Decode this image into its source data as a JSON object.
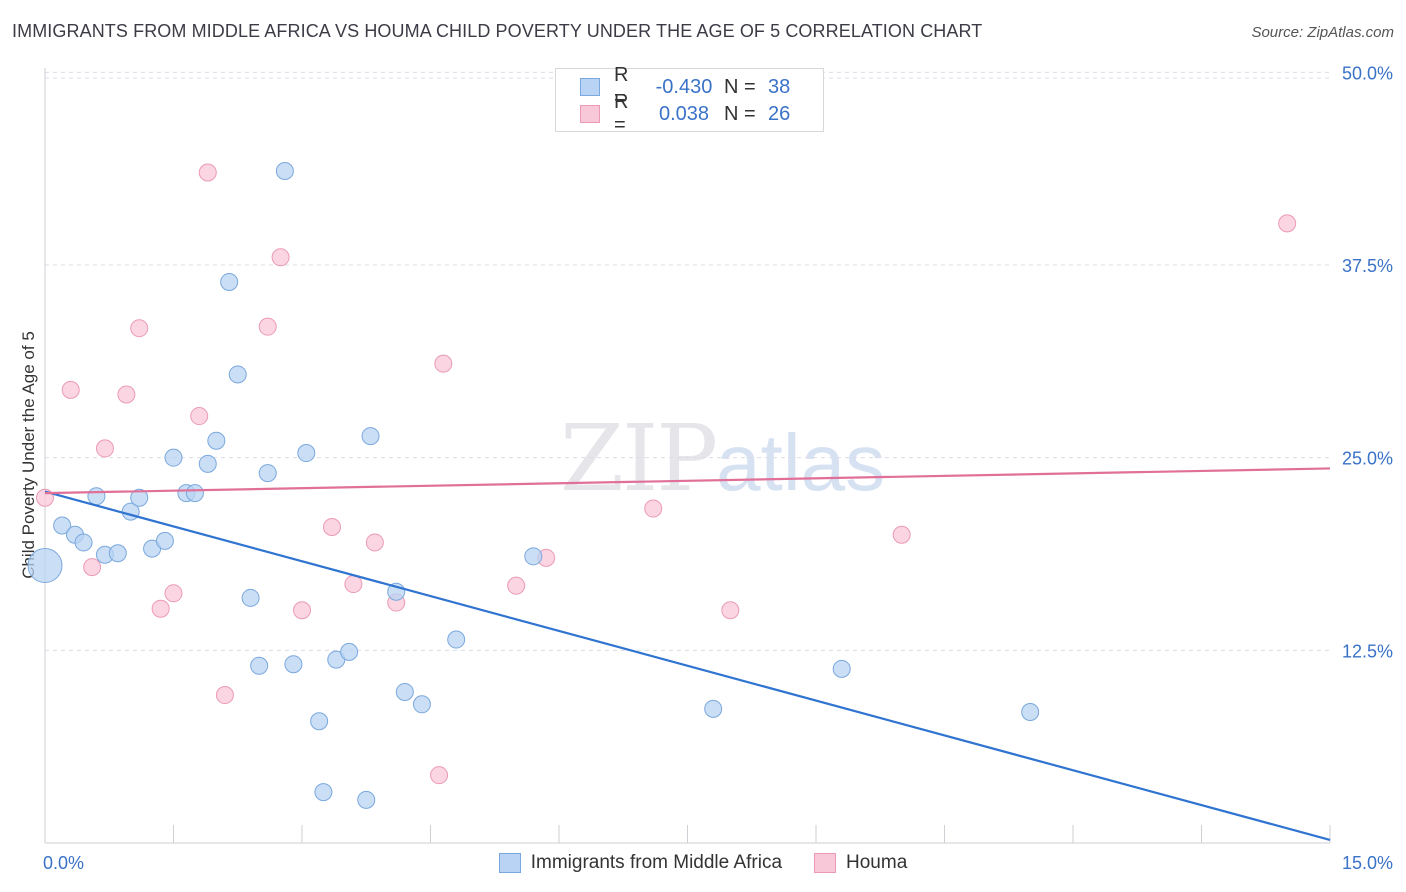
{
  "title": "IMMIGRANTS FROM MIDDLE AFRICA VS HOUMA CHILD POVERTY UNDER THE AGE OF 5 CORRELATION CHART",
  "source": "Source: ZipAtlas.com",
  "watermark": {
    "zip": "ZIP",
    "atlas": "atlas"
  },
  "legend": [
    {
      "r_label": "R =",
      "r_value": "-0.430",
      "n_label": "N =",
      "n_value": "38"
    },
    {
      "r_label": "R =",
      "r_value": "0.038",
      "n_label": "N =",
      "n_value": "26"
    }
  ],
  "colors": {
    "blue_fill": "#b8d3f3",
    "blue_stroke": "#7aa8dd",
    "blue_line": "#2f74d0",
    "pink_fill": "#f9c8d8",
    "pink_stroke": "#eb9ab5",
    "pink_line": "#e07098",
    "tick_label": "#3a72c8",
    "grid": "#dcdce6"
  },
  "chart_data": {
    "type": "scatter",
    "title": "IMMIGRANTS FROM MIDDLE AFRICA VS HOUMA CHILD POVERTY UNDER THE AGE OF 5 CORRELATION CHART",
    "xlabel": "",
    "ylabel": "Child Poverty Under the Age of 5",
    "xlim": [
      0,
      15
    ],
    "ylim": [
      0,
      52
    ],
    "x_tick_labels": [
      "0.0%",
      "15.0%"
    ],
    "y_ticks": [
      12.5,
      25.0,
      37.5,
      50.0
    ],
    "y_tick_labels": [
      "12.5%",
      "25.0%",
      "37.5%",
      "50.0%"
    ],
    "grid": true,
    "legend_position": "top-center",
    "series": [
      {
        "name": "Immigrants from Middle Africa",
        "color": "#b8d3f3",
        "trend": {
          "x": [
            0,
            15
          ],
          "y": [
            22.8,
            0.2
          ]
        },
        "points": [
          {
            "x": 0.0,
            "y": 18.0,
            "big": true
          },
          {
            "x": 0.2,
            "y": 20.6
          },
          {
            "x": 0.35,
            "y": 20.0
          },
          {
            "x": 0.45,
            "y": 19.5
          },
          {
            "x": 0.6,
            "y": 22.5
          },
          {
            "x": 0.7,
            "y": 18.7
          },
          {
            "x": 0.85,
            "y": 18.8
          },
          {
            "x": 1.0,
            "y": 21.5
          },
          {
            "x": 1.1,
            "y": 22.4
          },
          {
            "x": 1.25,
            "y": 19.1
          },
          {
            "x": 1.4,
            "y": 19.6
          },
          {
            "x": 1.5,
            "y": 25.0
          },
          {
            "x": 1.65,
            "y": 22.7
          },
          {
            "x": 1.75,
            "y": 22.7
          },
          {
            "x": 1.9,
            "y": 24.6
          },
          {
            "x": 2.0,
            "y": 26.1
          },
          {
            "x": 2.15,
            "y": 36.4
          },
          {
            "x": 2.25,
            "y": 30.4
          },
          {
            "x": 2.4,
            "y": 15.9
          },
          {
            "x": 2.5,
            "y": 11.5
          },
          {
            "x": 2.6,
            "y": 24.0
          },
          {
            "x": 2.8,
            "y": 43.6
          },
          {
            "x": 2.9,
            "y": 11.6
          },
          {
            "x": 3.05,
            "y": 25.3
          },
          {
            "x": 3.2,
            "y": 7.9
          },
          {
            "x": 3.25,
            "y": 3.3
          },
          {
            "x": 3.4,
            "y": 11.9
          },
          {
            "x": 3.55,
            "y": 12.4
          },
          {
            "x": 3.75,
            "y": 2.8
          },
          {
            "x": 3.8,
            "y": 26.4
          },
          {
            "x": 4.1,
            "y": 16.3
          },
          {
            "x": 4.2,
            "y": 9.8
          },
          {
            "x": 4.4,
            "y": 9.0
          },
          {
            "x": 4.8,
            "y": 13.2
          },
          {
            "x": 5.7,
            "y": 18.6
          },
          {
            "x": 7.8,
            "y": 8.7
          },
          {
            "x": 9.3,
            "y": 11.3
          },
          {
            "x": 11.5,
            "y": 8.5
          }
        ]
      },
      {
        "name": "Houma",
        "color": "#f9c8d8",
        "trend": {
          "x": [
            0,
            15
          ],
          "y": [
            22.7,
            24.3
          ]
        },
        "points": [
          {
            "x": 0.0,
            "y": 22.4
          },
          {
            "x": 0.55,
            "y": 17.9
          },
          {
            "x": 0.3,
            "y": 29.4
          },
          {
            "x": 0.7,
            "y": 25.6
          },
          {
            "x": 0.95,
            "y": 29.1
          },
          {
            "x": 1.1,
            "y": 33.4
          },
          {
            "x": 1.35,
            "y": 15.2
          },
          {
            "x": 1.5,
            "y": 16.2
          },
          {
            "x": 1.8,
            "y": 27.7
          },
          {
            "x": 1.9,
            "y": 43.5
          },
          {
            "x": 2.1,
            "y": 9.6
          },
          {
            "x": 2.6,
            "y": 33.5
          },
          {
            "x": 2.75,
            "y": 38.0
          },
          {
            "x": 3.0,
            "y": 15.1
          },
          {
            "x": 3.35,
            "y": 20.5
          },
          {
            "x": 3.6,
            "y": 16.8
          },
          {
            "x": 3.85,
            "y": 19.5
          },
          {
            "x": 4.1,
            "y": 15.6
          },
          {
            "x": 4.6,
            "y": 4.4
          },
          {
            "x": 4.65,
            "y": 31.1
          },
          {
            "x": 5.5,
            "y": 16.7
          },
          {
            "x": 5.85,
            "y": 18.5
          },
          {
            "x": 7.1,
            "y": 21.7
          },
          {
            "x": 8.0,
            "y": 15.1
          },
          {
            "x": 10.0,
            "y": 20.0
          },
          {
            "x": 14.5,
            "y": 40.2
          }
        ]
      }
    ]
  }
}
